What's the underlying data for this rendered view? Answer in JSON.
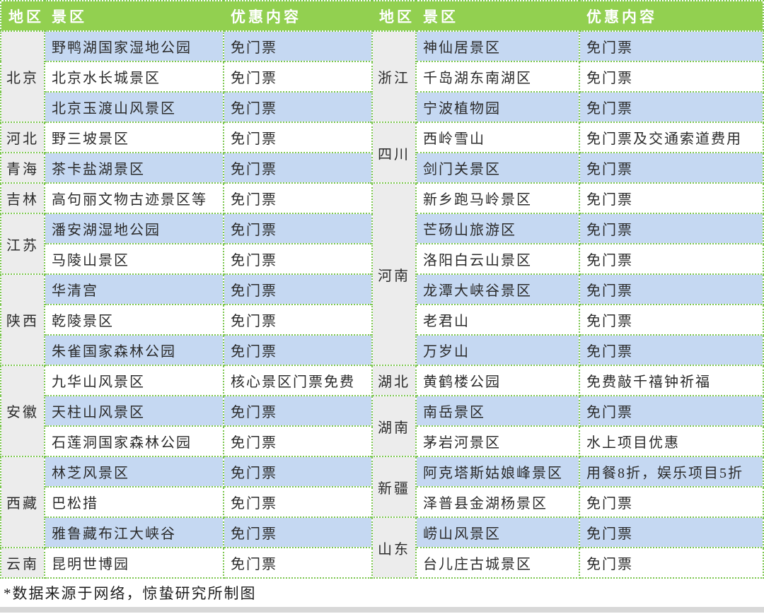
{
  "header": {
    "labels": [
      "地区",
      "景区",
      "优惠内容",
      "地区",
      "景区",
      "优惠内容"
    ]
  },
  "chart_data": {
    "type": "table",
    "columns": [
      "地区",
      "景区",
      "优惠内容"
    ],
    "panels": [
      {
        "groups": [
          {
            "region": "北京",
            "rows": [
              [
                "野鸭湖国家湿地公园",
                "免门票"
              ],
              [
                "北京水长城景区",
                "免门票"
              ],
              [
                "北京玉渡山风景区",
                "免门票"
              ]
            ]
          },
          {
            "region": "河北",
            "rows": [
              [
                "野三坡景区",
                "免门票"
              ]
            ]
          },
          {
            "region": "青海",
            "rows": [
              [
                "茶卡盐湖景区",
                "免门票"
              ]
            ]
          },
          {
            "region": "吉林",
            "rows": [
              [
                "高句丽文物古迹景区等",
                "免门票"
              ]
            ]
          },
          {
            "region": "江苏",
            "rows": [
              [
                "潘安湖湿地公园",
                "免门票"
              ],
              [
                "马陵山景区",
                "免门票"
              ]
            ]
          },
          {
            "region": "陕西",
            "rows": [
              [
                "华清宫",
                "免门票"
              ],
              [
                "乾陵景区",
                "免门票"
              ],
              [
                "朱雀国家森林公园",
                "免门票"
              ]
            ]
          },
          {
            "region": "安徽",
            "rows": [
              [
                "九华山风景区",
                "核心景区门票免费"
              ],
              [
                "天柱山风景区",
                "免门票"
              ],
              [
                "石莲洞国家森林公园",
                "免门票"
              ]
            ]
          },
          {
            "region": "西藏",
            "rows": [
              [
                "林芝风景区",
                "免门票"
              ],
              [
                "巴松措",
                "免门票"
              ],
              [
                "雅鲁藏布江大峡谷",
                "免门票"
              ]
            ]
          },
          {
            "region": "云南",
            "rows": [
              [
                "昆明世博园",
                "免门票"
              ]
            ]
          }
        ]
      },
      {
        "groups": [
          {
            "region": "浙江",
            "rows": [
              [
                "神仙居景区",
                "免门票"
              ],
              [
                "千岛湖东南湖区",
                "免门票"
              ],
              [
                "宁波植物园",
                "免门票"
              ]
            ]
          },
          {
            "region": "四川",
            "rows": [
              [
                "西岭雪山",
                "免门票及交通索道费用"
              ],
              [
                "剑门关景区",
                "免门票"
              ]
            ]
          },
          {
            "region": "河南",
            "rows": [
              [
                "新乡跑马岭景区",
                "免门票"
              ],
              [
                "芒砀山旅游区",
                "免门票"
              ],
              [
                "洛阳白云山景区",
                "免门票"
              ],
              [
                "龙潭大峡谷景区",
                "免门票"
              ],
              [
                "老君山",
                "免门票"
              ],
              [
                "万岁山",
                "免门票"
              ]
            ]
          },
          {
            "region": "湖北",
            "rows": [
              [
                "黄鹤楼公园",
                "免费敲千禧钟祈福"
              ]
            ]
          },
          {
            "region": "湖南",
            "rows": [
              [
                "南岳景区",
                "免门票"
              ],
              [
                "茅岩河景区",
                "水上项目优惠"
              ]
            ]
          },
          {
            "region": "新疆",
            "rows": [
              [
                "阿克塔斯姑娘峰景区",
                "用餐8折，娱乐项目5折"
              ],
              [
                "泽普县金湖杨景区",
                "免门票"
              ]
            ]
          },
          {
            "region": "山东",
            "rows": [
              [
                "崂山风景区",
                "免门票"
              ],
              [
                "台儿庄古城景区",
                "免门票"
              ]
            ]
          }
        ]
      }
    ],
    "footnote": "*数据来源于网络，惊蛰研究所制图"
  },
  "colors": {
    "header_bg": "#92d050",
    "header_text": "#ffffff",
    "row_alt_bg": "#c5d8f2",
    "row_bg": "#ffffff",
    "region_bg": "#ececec",
    "border": "#7cc64e",
    "body_text": "#2b2b2b",
    "bottom_strip": "#d8d8d8"
  }
}
